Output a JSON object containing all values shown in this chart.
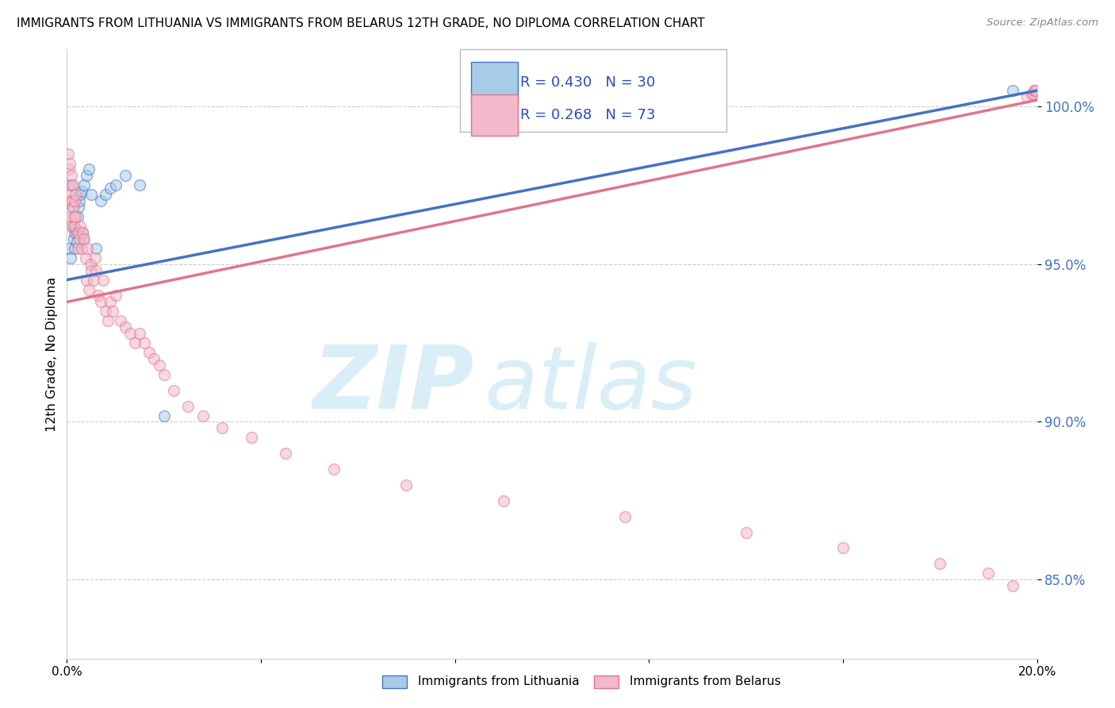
{
  "title": "IMMIGRANTS FROM LITHUANIA VS IMMIGRANTS FROM BELARUS 12TH GRADE, NO DIPLOMA CORRELATION CHART",
  "source": "Source: ZipAtlas.com",
  "ylabel": "12th Grade, No Diploma",
  "yticks": [
    85.0,
    90.0,
    95.0,
    100.0
  ],
  "ytick_labels": [
    "85.0%",
    "90.0%",
    "95.0%",
    "100.0%"
  ],
  "xlim": [
    0.0,
    20.0
  ],
  "ylim": [
    82.5,
    101.8
  ],
  "legend_R1": "R = 0.430",
  "legend_N1": "N = 30",
  "legend_R2": "R = 0.268",
  "legend_N2": "N = 73",
  "color_lithuania": "#a8cce8",
  "color_belarus": "#f4b8cb",
  "color_line_lithuania": "#4472c4",
  "color_line_belarus": "#e0758a",
  "watermark_zip": "ZIP",
  "watermark_atlas": "atlas",
  "watermark_color": "#daeef8",
  "legend_label1": "Immigrants from Lithuania",
  "legend_label2": "Immigrants from Belarus",
  "gridcolor": "#cccccc",
  "scatter_size": 100,
  "scatter_alpha": 0.55,
  "scatter_linewidth": 1.0,
  "trend_lith_x0": 0.0,
  "trend_lith_y0": 94.5,
  "trend_lith_x1": 20.0,
  "trend_lith_y1": 100.5,
  "trend_bela_x0": 0.0,
  "trend_bela_y0": 93.8,
  "trend_bela_x1": 20.0,
  "trend_bela_y1": 100.2,
  "lithuania_x": [
    0.05,
    0.08,
    0.1,
    0.12,
    0.13,
    0.14,
    0.15,
    0.16,
    0.18,
    0.2,
    0.22,
    0.24,
    0.26,
    0.28,
    0.3,
    0.32,
    0.34,
    0.36,
    0.4,
    0.45,
    0.5,
    0.6,
    0.7,
    0.8,
    0.9,
    1.0,
    1.2,
    1.5,
    2.0,
    19.5
  ],
  "lithuania_y": [
    95.5,
    95.2,
    97.5,
    96.8,
    96.2,
    95.8,
    96.0,
    95.5,
    96.1,
    95.7,
    96.5,
    96.8,
    97.0,
    97.2,
    97.3,
    96.0,
    95.8,
    97.5,
    97.8,
    98.0,
    97.2,
    95.5,
    97.0,
    97.2,
    97.4,
    97.5,
    97.8,
    97.5,
    90.2,
    100.5
  ],
  "belarus_x": [
    0.02,
    0.03,
    0.04,
    0.05,
    0.06,
    0.07,
    0.08,
    0.09,
    0.1,
    0.11,
    0.12,
    0.13,
    0.14,
    0.15,
    0.16,
    0.17,
    0.18,
    0.2,
    0.22,
    0.24,
    0.26,
    0.28,
    0.3,
    0.32,
    0.35,
    0.38,
    0.4,
    0.42,
    0.45,
    0.48,
    0.5,
    0.55,
    0.58,
    0.6,
    0.65,
    0.7,
    0.75,
    0.8,
    0.85,
    0.9,
    0.95,
    1.0,
    1.1,
    1.2,
    1.3,
    1.4,
    1.5,
    1.6,
    1.7,
    1.8,
    1.9,
    2.0,
    2.2,
    2.5,
    2.8,
    3.2,
    3.8,
    4.5,
    5.5,
    7.0,
    9.0,
    11.5,
    14.0,
    16.0,
    18.0,
    19.0,
    19.5,
    19.8,
    19.9,
    19.92,
    19.94,
    19.96,
    19.98
  ],
  "belarus_y": [
    98.5,
    97.2,
    98.0,
    97.5,
    98.2,
    97.0,
    96.5,
    97.8,
    96.2,
    97.0,
    97.5,
    96.8,
    96.5,
    97.0,
    96.2,
    97.2,
    96.5,
    96.0,
    95.5,
    96.0,
    95.8,
    96.2,
    95.5,
    96.0,
    95.8,
    95.2,
    94.5,
    95.5,
    94.2,
    95.0,
    94.8,
    94.5,
    95.2,
    94.8,
    94.0,
    93.8,
    94.5,
    93.5,
    93.2,
    93.8,
    93.5,
    94.0,
    93.2,
    93.0,
    92.8,
    92.5,
    92.8,
    92.5,
    92.2,
    92.0,
    91.8,
    91.5,
    91.0,
    90.5,
    90.2,
    89.8,
    89.5,
    89.0,
    88.5,
    88.0,
    87.5,
    87.0,
    86.5,
    86.0,
    85.5,
    85.2,
    84.8,
    100.3,
    100.4,
    100.4,
    100.5,
    100.5,
    100.5
  ]
}
